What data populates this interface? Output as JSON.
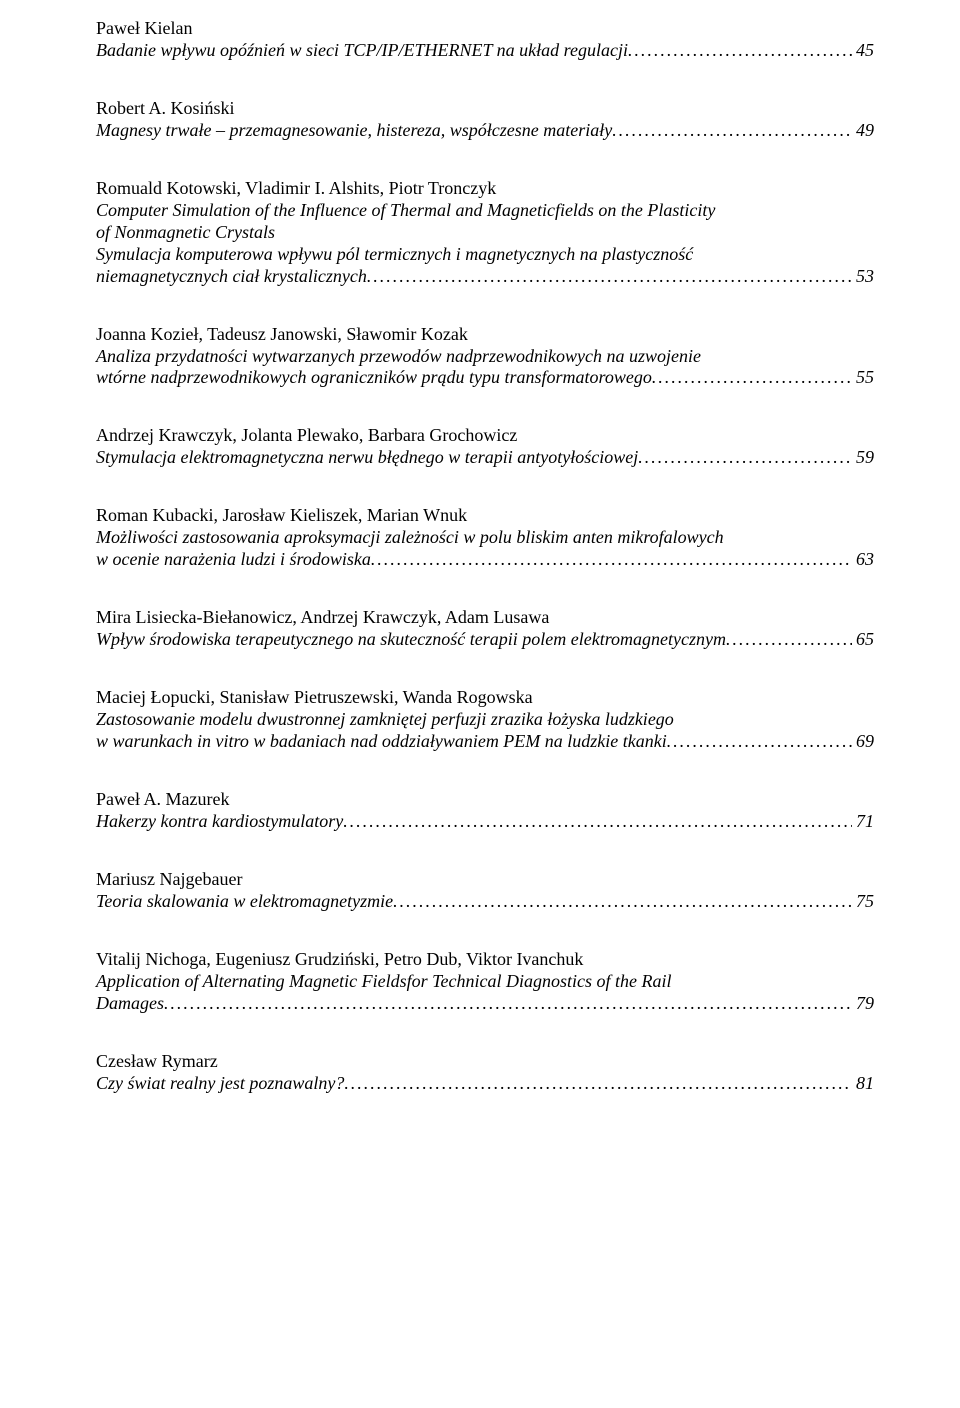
{
  "entries": [
    {
      "authors": "Paweł Kielan",
      "title_pre": [],
      "title_last": "Badanie wpływu opóźnień w sieci TCP/IP/ETHERNET na układ regulacji",
      "page": "45"
    },
    {
      "authors": "Robert A. Kosiński",
      "title_pre": [],
      "title_last": "Magnesy trwałe – przemagnesowanie, histereza, współczesne materiały",
      "page": " 49"
    },
    {
      "authors": "Romuald Kotowski, Vladimir I. Alshits, Piotr Tronczyk",
      "title_pre": [
        "Computer Simulation of the Influence of Thermal and Magneticfields on the Plasticity",
        "of  Nonmagnetic Crystals",
        "Symulacja komputerowa wpływu pól termicznych i magnetycznych na plastyczność"
      ],
      "title_last": "niemagnetycznych ciał krystalicznych",
      "page": " 53"
    },
    {
      "authors": "Joanna Kozieł, Tadeusz Janowski, Sławomir Kozak",
      "title_pre": [
        "Analiza przydatności wytwarzanych przewodów nadprzewodnikowych na uzwojenie"
      ],
      "title_last": "wtórne nadprzewodnikowych ograniczników prądu typu transformatorowego",
      "page": " 55"
    },
    {
      "authors": "Andrzej Krawczyk, Jolanta Plewako, Barbara Grochowicz",
      "title_pre": [],
      "title_last": "Stymulacja elektromagnetyczna nerwu błędnego w terapii antyotyłościowej",
      "page": " 59"
    },
    {
      "authors": "Roman Kubacki, Jarosław Kieliszek, Marian Wnuk",
      "title_pre": [
        "Możliwości zastosowania aproksymacji zależności w polu bliskim anten mikrofalowych"
      ],
      "title_last": "w ocenie narażenia ludzi i środowiska ",
      "page": " 63"
    },
    {
      "authors": "Mira Lisiecka-Biełanowicz, Andrzej Krawczyk, Adam Lusawa",
      "title_pre": [],
      "title_last": "Wpływ środowiska terapeutycznego na skuteczność terapii polem elektromagnetycznym",
      "page": " 65"
    },
    {
      "authors": "Maciej Łopucki, Stanisław Pietruszewski, Wanda Rogowska",
      "title_pre": [
        "Zastosowanie modelu dwustronnej zamkniętej perfuzji zrazika łożyska ludzkiego"
      ],
      "title_last": "w warunkach in vitro w badaniach nad oddziaływaniem PEM na ludzkie tkanki",
      "page": " 69"
    },
    {
      "authors": "Paweł A. Mazurek",
      "title_pre": [],
      "title_last": "Hakerzy kontra kardiostymulatory",
      "page": " 71"
    },
    {
      "authors": "Mariusz Najgebauer",
      "title_pre": [],
      "title_last": "Teoria skalowania w elektromagnetyzmie",
      "page": " 75"
    },
    {
      "authors": "Vitalij Nichoga, Eugeniusz Grudziński, Petro Dub, Viktor Ivanchuk",
      "title_pre": [
        "Application of Alternating Magnetic Fieldsfor Technical Diagnostics of the Rail"
      ],
      "title_last": "Damages",
      "page": " 79"
    },
    {
      "authors": "Czesław Rymarz",
      "title_pre": [],
      "title_last": "Czy świat realny jest poznawalny?",
      "page": " 81"
    }
  ]
}
